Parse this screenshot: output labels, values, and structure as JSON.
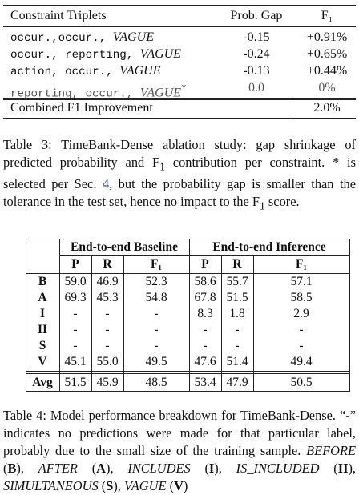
{
  "table3": {
    "headers": [
      "Constraint Triplets",
      "Prob. Gap",
      "F₁"
    ],
    "rows": [
      {
        "a": "occur.",
        "b": "occur.",
        "rel": "VAGUE",
        "star": "",
        "gap": "-0.15",
        "f1": "+0.91%"
      },
      {
        "a": "occur.",
        "b": "reporting",
        "rel": "VAGUE",
        "star": "",
        "gap": "-0.24",
        "f1": "+0.65%"
      },
      {
        "a": "action",
        "b": "occur.",
        "rel": "VAGUE",
        "star": "",
        "gap": "-0.13",
        "f1": "+0.44%"
      },
      {
        "a": "reporting",
        "b": "occur.",
        "rel": "VAGUE",
        "star": "*",
        "gap": "0.0",
        "f1": "0%"
      }
    ],
    "combined_label": "Combined F1 Improvement",
    "combined_value": "2.0%"
  },
  "caption3": {
    "lead": "Table 3: TimeBank-Dense ablation study: gap shrinkage of predicted probability and F",
    "sub1": "1",
    "mid": " contribution per constraint. * is selected per Sec. ",
    "ref": "4",
    "tail": ", but the probability gap is smaller than the tolerance in the test set, hence no impact to the F",
    "sub2": "1",
    "end": " score."
  },
  "table4": {
    "group_headers": [
      "End-to-end Baseline",
      "End-to-end Inference"
    ],
    "col_headers": [
      "P",
      "R",
      "F₁",
      "P",
      "R",
      "F₁"
    ],
    "rows": [
      {
        "label": "B",
        "vals": [
          "59.0",
          "46.9",
          "52.3",
          "58.6",
          "55.7",
          "57.1"
        ]
      },
      {
        "label": "A",
        "vals": [
          "69.3",
          "45.3",
          "54.8",
          "67.8",
          "51.5",
          "58.5"
        ]
      },
      {
        "label": "I",
        "vals": [
          "-",
          "-",
          "-",
          "8.3",
          "1.8",
          "2.9"
        ]
      },
      {
        "label": "II",
        "vals": [
          "-",
          "-",
          "-",
          "-",
          "-",
          "-"
        ]
      },
      {
        "label": "S",
        "vals": [
          "-",
          "-",
          "-",
          "-",
          "-",
          "-"
        ]
      },
      {
        "label": "V",
        "vals": [
          "45.1",
          "55.0",
          "49.5",
          "47.6",
          "51.4",
          "49.4"
        ]
      }
    ],
    "avg": {
      "label": "Avg",
      "vals": [
        "51.5",
        "45.9",
        "48.5",
        "53.4",
        "47.9",
        "50.5"
      ]
    }
  },
  "caption4": {
    "lead": "Table 4: Model performance breakdown for TimeBank-Dense. “-” indicates no predictions were made for that particular label, probably due to the small size of the training sample. ",
    "items": [
      {
        "name": "BEFORE",
        "abbr": "B"
      },
      {
        "name": "AFTER",
        "abbr": "A"
      },
      {
        "name": "INCLUDES",
        "abbr": "I"
      },
      {
        "name": "IS_INCLUDED",
        "abbr": "II"
      },
      {
        "name": "SIMULTANEOUS",
        "abbr": "S"
      },
      {
        "name": "VAGUE",
        "abbr": "V"
      }
    ]
  }
}
